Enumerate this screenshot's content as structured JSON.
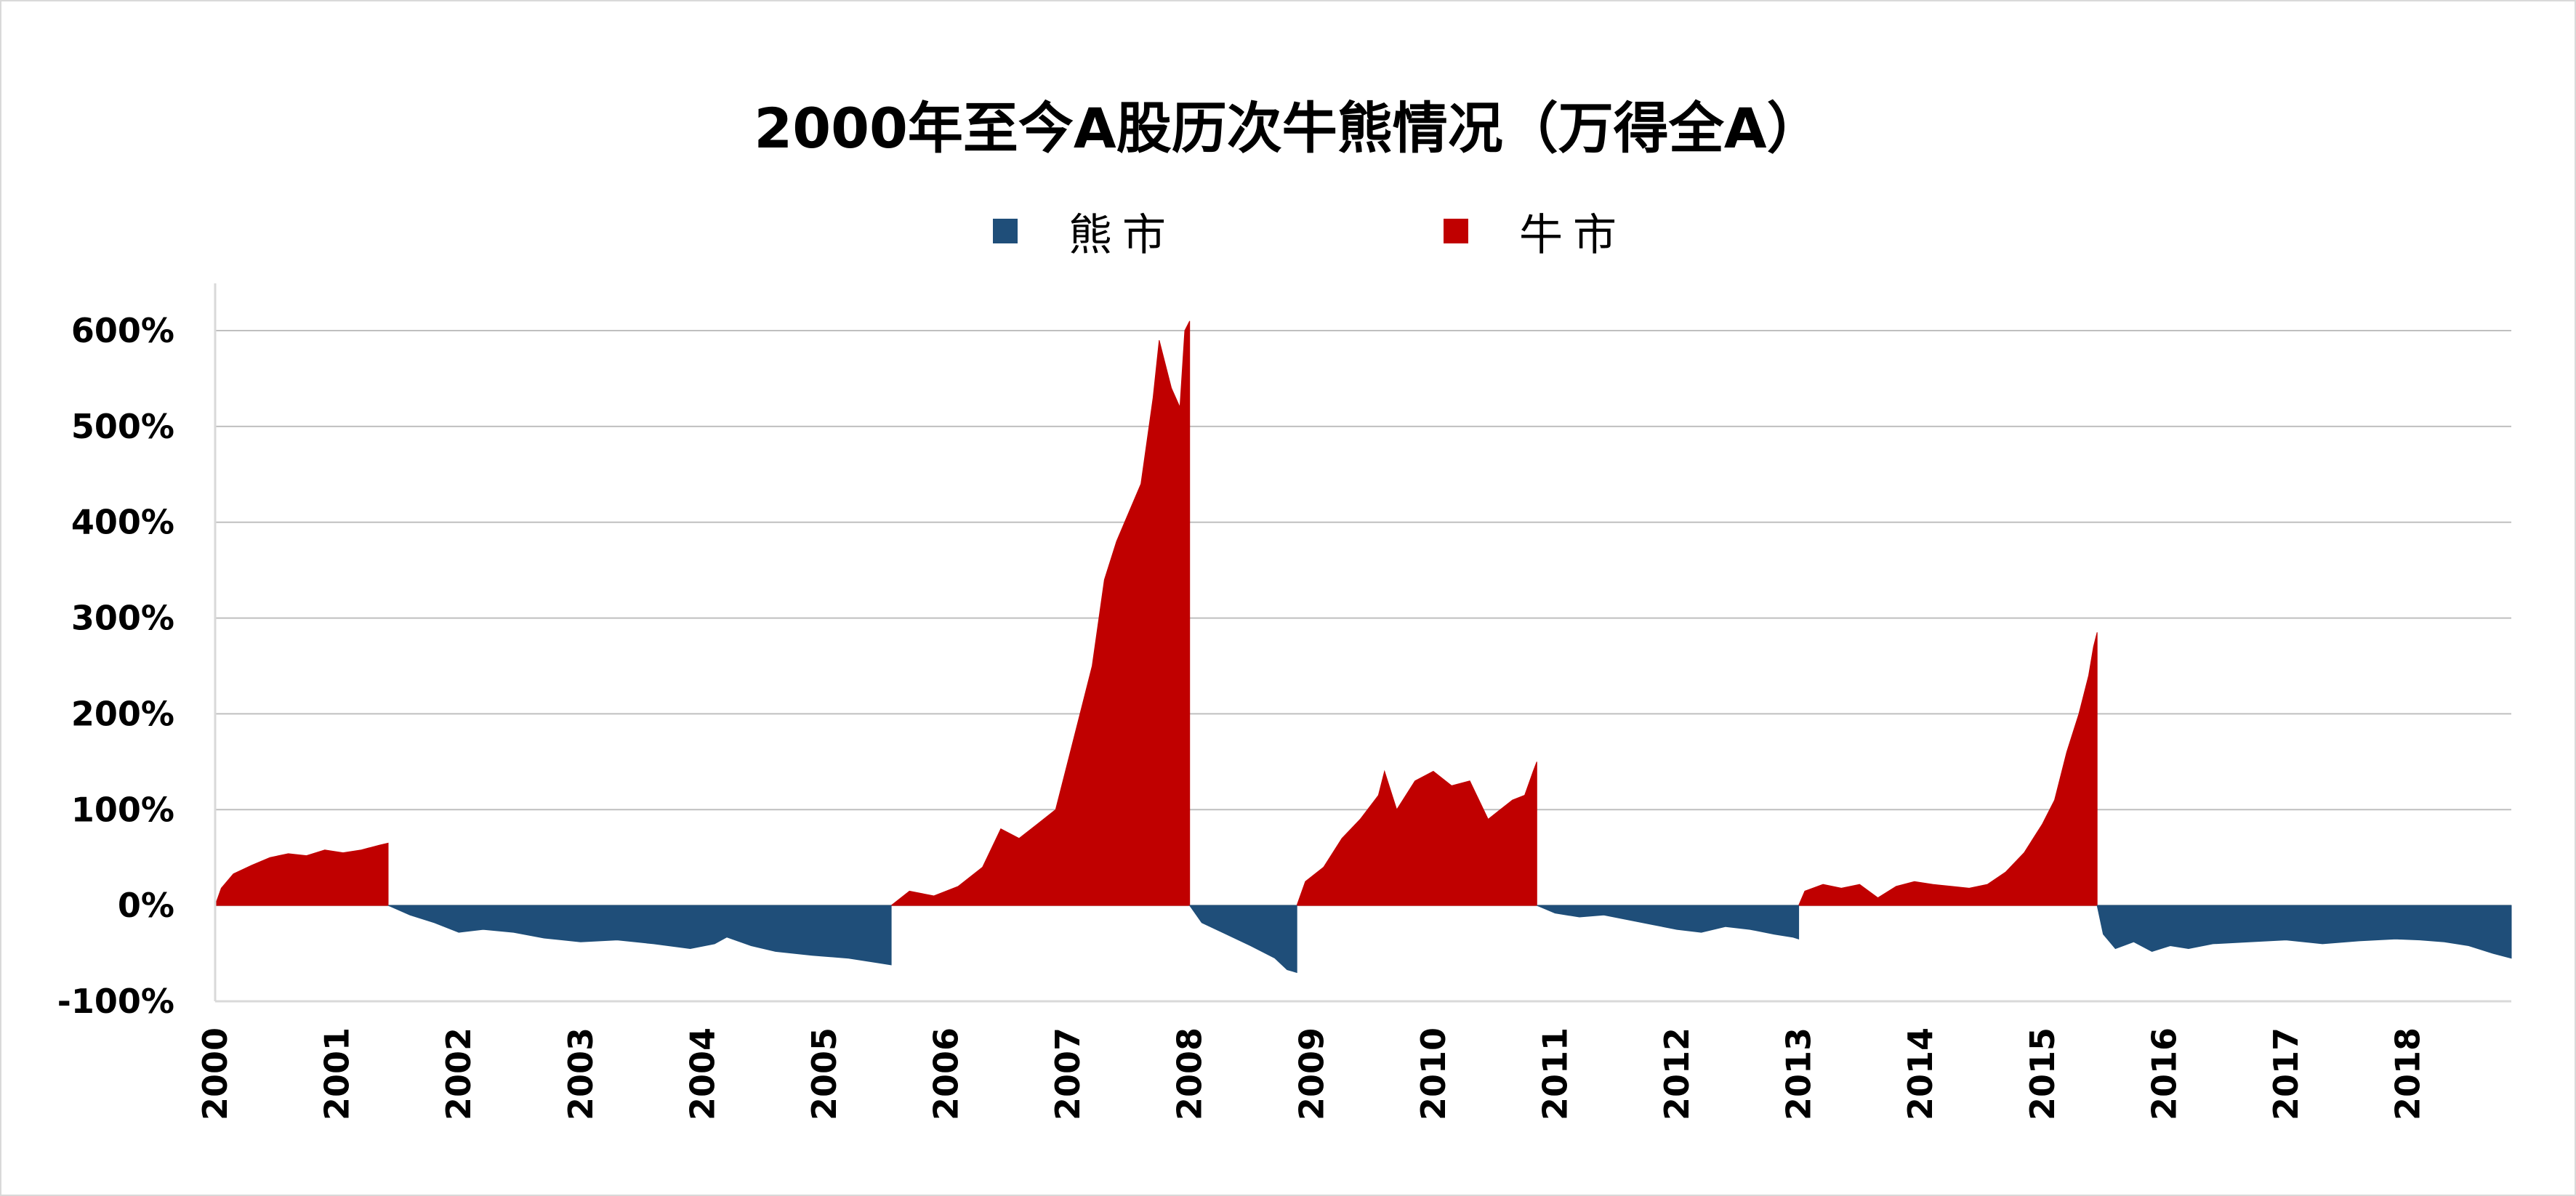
{
  "chart_data": {
    "type": "area",
    "title": "2000年至今A股历次牛熊情况（万得全A）",
    "xlabel": "",
    "ylabel": "",
    "legend_position": "top-center",
    "grid": true,
    "ylim": [
      -100,
      600
    ],
    "xlim": [
      2000,
      2018.85
    ],
    "y_ticks": [
      "600%",
      "500%",
      "400%",
      "300%",
      "200%",
      "100%",
      "0%",
      "-100%"
    ],
    "x_ticks": [
      "2000",
      "2001",
      "2002",
      "2003",
      "2004",
      "2005",
      "2006",
      "2007",
      "2008",
      "2009",
      "2010",
      "2011",
      "2012",
      "2013",
      "2014",
      "2015",
      "2016",
      "2017",
      "2018"
    ],
    "colors": {
      "bear": "#1f4e79",
      "bull": "#c00000",
      "grid": "#bfbfbf",
      "axis": "#d9d9d9"
    },
    "series": [
      {
        "name": "牛市",
        "color": "#c00000",
        "segments": [
          {
            "x": [
              2000.0,
              2000.05,
              2000.15,
              2000.3,
              2000.45,
              2000.6,
              2000.75,
              2000.9,
              2001.05,
              2001.2,
              2001.35,
              2001.42
            ],
            "y": [
              0,
              18,
              33,
              42,
              50,
              54,
              52,
              58,
              55,
              58,
              63,
              65
            ]
          },
          {
            "x": [
              2005.55,
              2005.7,
              2005.9,
              2006.1,
              2006.3,
              2006.45,
              2006.6,
              2006.75,
              2006.9,
              2007.0,
              2007.1,
              2007.2,
              2007.3,
              2007.4,
              2007.5,
              2007.6,
              2007.7,
              2007.75,
              2007.85,
              2007.92,
              2007.96,
              2008.0
            ],
            "y": [
              0,
              15,
              10,
              20,
              40,
              80,
              70,
              85,
              100,
              150,
              200,
              250,
              340,
              380,
              410,
              440,
              530,
              590,
              540,
              520,
              600,
              610
            ]
          },
          {
            "x": [
              2008.88,
              2008.95,
              2009.1,
              2009.25,
              2009.4,
              2009.55,
              2009.6,
              2009.7,
              2009.85,
              2010.0,
              2010.15,
              2010.3,
              2010.45,
              2010.55,
              2010.65,
              2010.75,
              2010.82,
              2010.85
            ],
            "y": [
              0,
              25,
              40,
              70,
              90,
              115,
              140,
              100,
              130,
              140,
              125,
              130,
              90,
              100,
              110,
              115,
              140,
              150
            ]
          },
          {
            "x": [
              2013.0,
              2013.05,
              2013.2,
              2013.35,
              2013.5,
              2013.65,
              2013.8,
              2013.95,
              2014.1,
              2014.25,
              2014.4,
              2014.55,
              2014.7,
              2014.85,
              2015.0,
              2015.1,
              2015.2,
              2015.3,
              2015.38,
              2015.42,
              2015.45
            ],
            "y": [
              0,
              15,
              22,
              18,
              22,
              8,
              20,
              25,
              22,
              20,
              18,
              22,
              35,
              55,
              85,
              110,
              160,
              200,
              240,
              270,
              285
            ]
          }
        ]
      },
      {
        "name": "熊市",
        "color": "#1f4e79",
        "segments": [
          {
            "x": [
              2001.42,
              2001.6,
              2001.8,
              2002.0,
              2002.2,
              2002.45,
              2002.7,
              2003.0,
              2003.3,
              2003.6,
              2003.9,
              2004.1,
              2004.2,
              2004.4,
              2004.6,
              2004.9,
              2005.2,
              2005.45,
              2005.55
            ],
            "y": [
              0,
              -10,
              -18,
              -28,
              -25,
              -28,
              -34,
              -38,
              -36,
              -40,
              -45,
              -40,
              -33,
              -42,
              -48,
              -52,
              -55,
              -60,
              -62
            ]
          },
          {
            "x": [
              2008.0,
              2008.1,
              2008.3,
              2008.5,
              2008.7,
              2008.8,
              2008.88
            ],
            "y": [
              0,
              -18,
              -30,
              -42,
              -55,
              -67,
              -70
            ]
          },
          {
            "x": [
              2010.85,
              2011.0,
              2011.2,
              2011.4,
              2011.6,
              2011.8,
              2012.0,
              2012.2,
              2012.4,
              2012.6,
              2012.8,
              2012.95,
              2013.0
            ],
            "y": [
              0,
              -8,
              -12,
              -10,
              -15,
              -20,
              -25,
              -28,
              -22,
              -25,
              -30,
              -33,
              -35
            ]
          },
          {
            "x": [
              2015.45,
              2015.5,
              2015.6,
              2015.75,
              2015.9,
              2016.05,
              2016.2,
              2016.4,
              2016.7,
              2017.0,
              2017.3,
              2017.6,
              2017.9,
              2018.1,
              2018.3,
              2018.5,
              2018.7,
              2018.85
            ],
            "y": [
              0,
              -30,
              -45,
              -38,
              -48,
              -42,
              -45,
              -40,
              -38,
              -36,
              -40,
              -37,
              -35,
              -36,
              -38,
              -42,
              -50,
              -55
            ]
          }
        ]
      }
    ]
  }
}
